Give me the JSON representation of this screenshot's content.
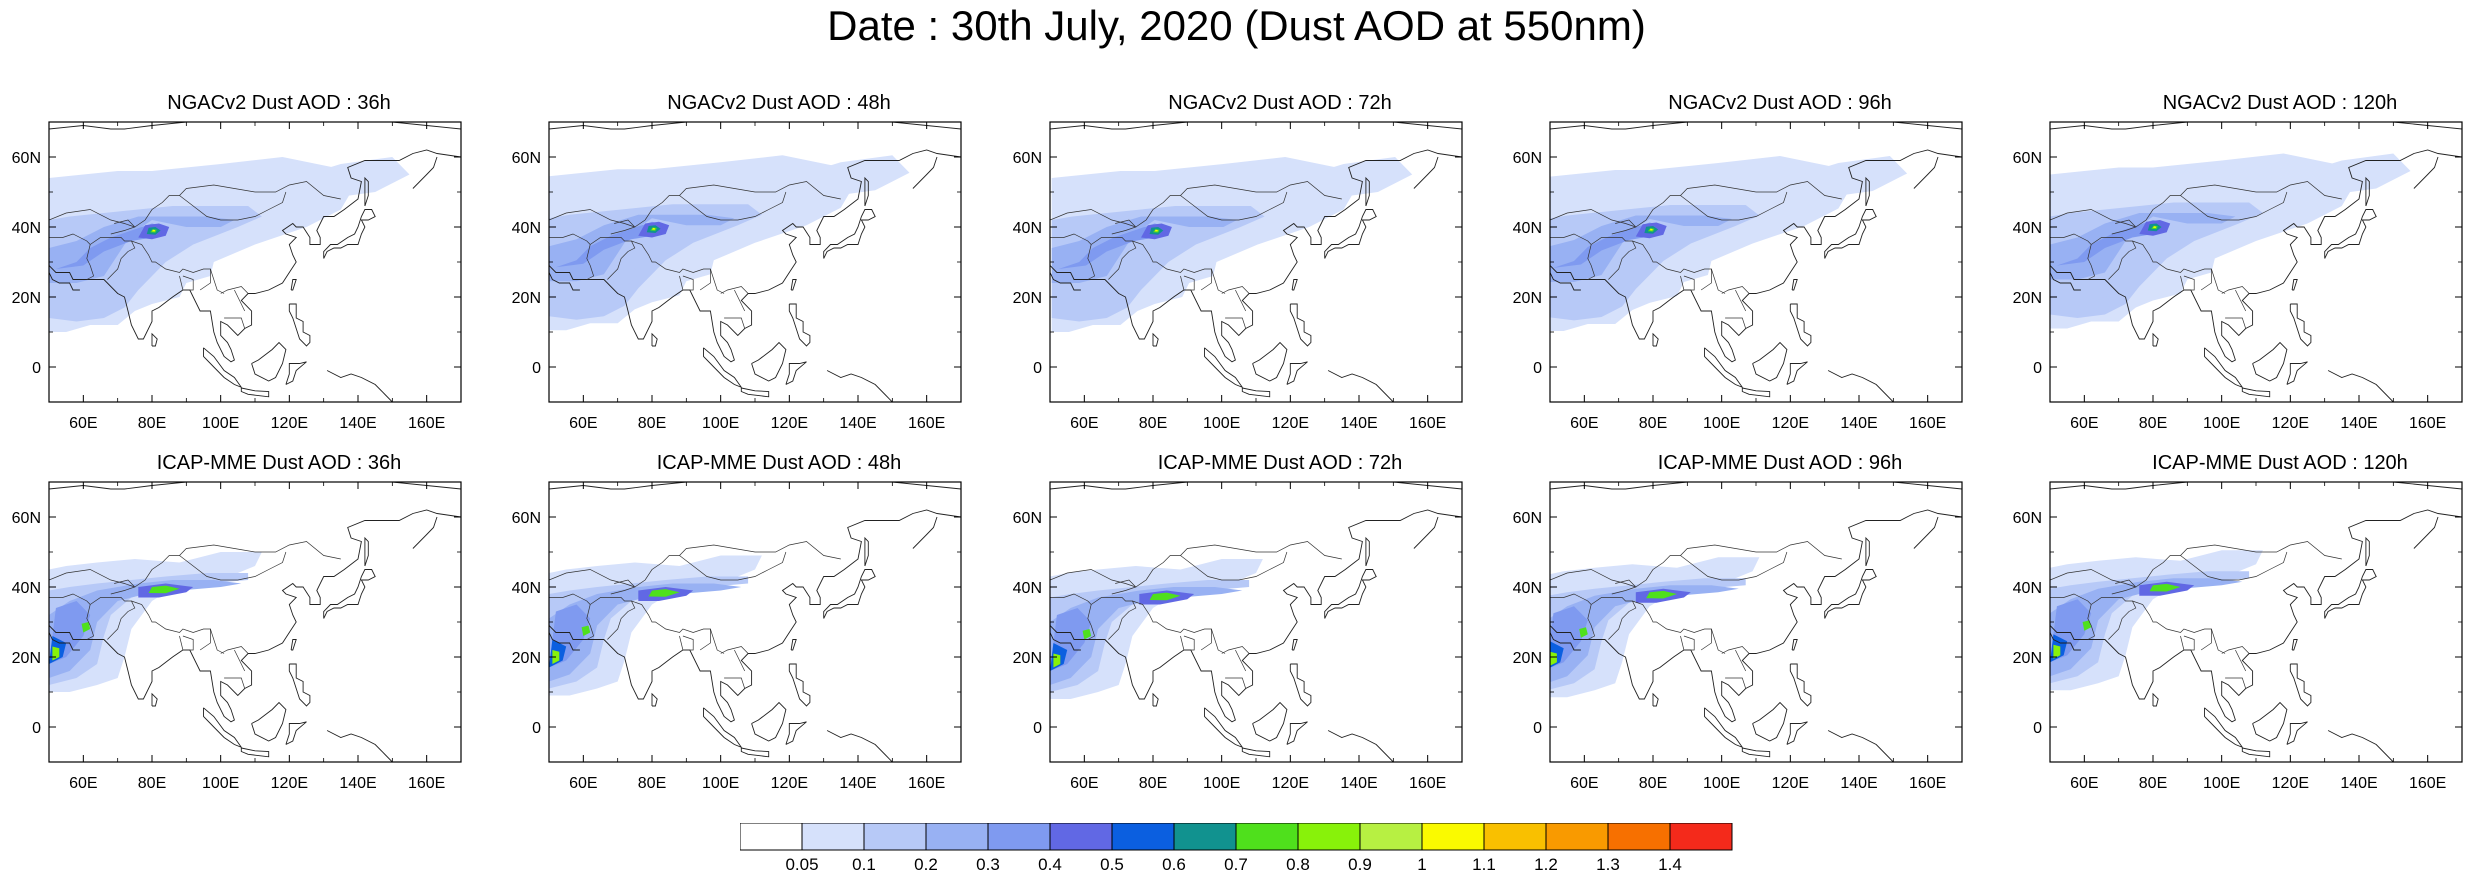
{
  "title": "Date : 30th July, 2020 (Dust AOD at 550nm)",
  "lon_ticks": [
    "60E",
    "80E",
    "100E",
    "120E",
    "140E",
    "160E"
  ],
  "lat_ticks": [
    "60N",
    "40N",
    "20N",
    "0"
  ],
  "lon_tick_values": [
    60,
    80,
    100,
    120,
    140,
    160
  ],
  "lat_tick_values": [
    60,
    40,
    20,
    0
  ],
  "map_extent": {
    "lon": [
      50,
      170
    ],
    "lat": [
      -10,
      70
    ]
  },
  "panels": [
    {
      "title": "NGACv2 Dust AOD : 36h",
      "model": "NGACv2",
      "lead": "36h"
    },
    {
      "title": "NGACv2 Dust AOD : 48h",
      "model": "NGACv2",
      "lead": "48h"
    },
    {
      "title": "NGACv2 Dust AOD : 72h",
      "model": "NGACv2",
      "lead": "72h"
    },
    {
      "title": "NGACv2 Dust AOD : 96h",
      "model": "NGACv2",
      "lead": "96h"
    },
    {
      "title": "NGACv2 Dust AOD : 120h",
      "model": "NGACv2",
      "lead": "120h"
    },
    {
      "title": "ICAP-MME Dust AOD : 36h",
      "model": "ICAP-MME",
      "lead": "36h"
    },
    {
      "title": "ICAP-MME Dust AOD : 48h",
      "model": "ICAP-MME",
      "lead": "48h"
    },
    {
      "title": "ICAP-MME Dust AOD : 72h",
      "model": "ICAP-MME",
      "lead": "72h"
    },
    {
      "title": "ICAP-MME Dust AOD : 96h",
      "model": "ICAP-MME",
      "lead": "96h"
    },
    {
      "title": "ICAP-MME Dust AOD : 120h",
      "model": "ICAP-MME",
      "lead": "120h"
    }
  ],
  "colorbar": {
    "colors": [
      "#ffffff",
      "#d6e1fb",
      "#b7c9f7",
      "#98b1f3",
      "#7f9af0",
      "#6168e4",
      "#0b5fe0",
      "#11928f",
      "#4fe01c",
      "#88f20a",
      "#b7f042",
      "#fafa00",
      "#f9c000",
      "#f99a00",
      "#f77000",
      "#f42a1b"
    ],
    "labels": [
      "0.05",
      "0.1",
      "0.2",
      "0.3",
      "0.4",
      "0.5",
      "0.6",
      "0.7",
      "0.8",
      "0.9",
      "1",
      "1.1",
      "1.2",
      "1.3",
      "1.4"
    ]
  }
}
